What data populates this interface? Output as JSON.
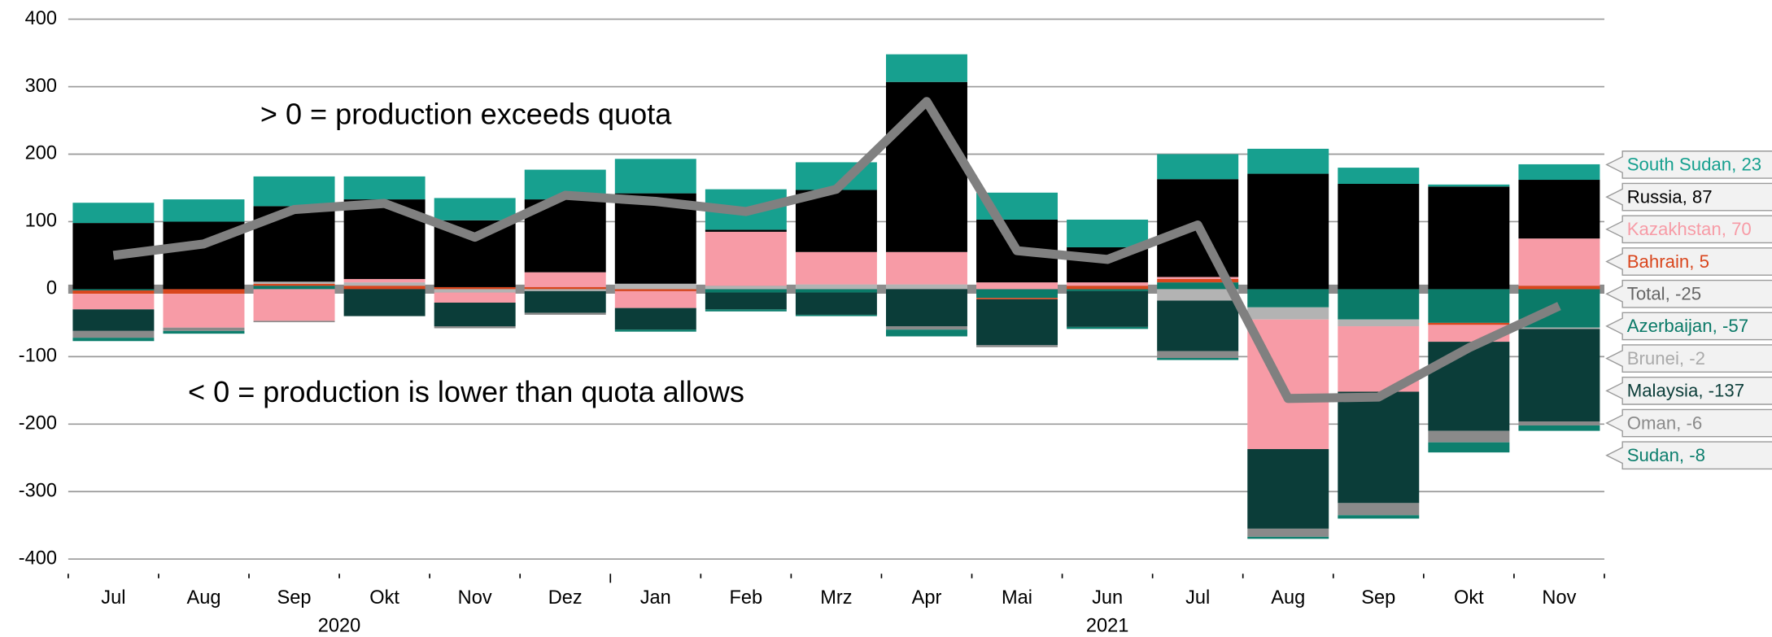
{
  "chart_data": {
    "type": "bar",
    "stacked": true,
    "annotations": [
      "> 0 = production exceeds quota",
      "< 0 = production is lower than quota allows"
    ],
    "categories": [
      "Jul",
      "Aug",
      "Sep",
      "Okt",
      "Nov",
      "Dez",
      "Jan",
      "Feb",
      "Mrz",
      "Apr",
      "Mai",
      "Jun",
      "Jul",
      "Aug",
      "Sep",
      "Okt",
      "Nov"
    ],
    "year_groups": [
      {
        "label": "2020",
        "start": 0,
        "end": 5
      },
      {
        "label": "2021",
        "start": 6,
        "end": 16
      }
    ],
    "ylim": [
      -400,
      400
    ],
    "yticks": [
      -400,
      -300,
      -200,
      -100,
      0,
      100,
      200,
      300,
      400
    ],
    "grid": true,
    "series": [
      {
        "name": "Azerbaijan",
        "legend_label": "Azerbaijan, -57",
        "color": "#0b7a68",
        "values": [
          -2,
          0,
          5,
          0,
          0,
          0,
          0,
          -5,
          -5,
          0,
          -13,
          -3,
          10,
          -27,
          -45,
          -50,
          -57
        ]
      },
      {
        "name": "Bahrain",
        "legend_label": "Bahrain, 5",
        "color": "#d9461d",
        "values": [
          -5,
          -7,
          3,
          5,
          3,
          3,
          -3,
          0,
          0,
          0,
          -2,
          5,
          5,
          0,
          0,
          -3,
          5
        ]
      },
      {
        "name": "Brunei",
        "legend_label": "Brunei, -2",
        "color": "#b3b3b3",
        "values": [
          0,
          0,
          3,
          5,
          -5,
          -3,
          8,
          5,
          7,
          7,
          0,
          0,
          -17,
          -18,
          -10,
          0,
          -2
        ]
      },
      {
        "name": "Kazakhstan",
        "legend_label": "Kazakhstan, 70",
        "color": "#f79ba6",
        "values": [
          -23,
          -50,
          -47,
          5,
          -15,
          22,
          -25,
          80,
          48,
          48,
          10,
          5,
          3,
          -192,
          -97,
          -25,
          70
        ]
      },
      {
        "name": "Russia",
        "legend_label": "Russia, 87",
        "color": "#000000",
        "values": [
          98,
          100,
          112,
          118,
          99,
          108,
          134,
          3,
          92,
          252,
          93,
          52,
          145,
          171,
          156,
          152,
          87
        ]
      },
      {
        "name": "Malaysia",
        "legend_label": "Malaysia, -137",
        "color": "#0b3d39",
        "values": [
          -32,
          0,
          0,
          -40,
          -35,
          -32,
          -32,
          -25,
          -33,
          -55,
          -68,
          -53,
          -75,
          -118,
          -165,
          -132,
          -137
        ]
      },
      {
        "name": "Oman",
        "legend_label": "Oman, -6",
        "color": "#8a8a8a",
        "values": [
          -10,
          -5,
          -2,
          0,
          -3,
          -3,
          0,
          0,
          0,
          -5,
          -3,
          0,
          -10,
          -12,
          -18,
          -17,
          -6
        ]
      },
      {
        "name": "Sudan",
        "legend_label": "Sudan, -8",
        "color": "#0e7f6e",
        "values": [
          -5,
          -4,
          0,
          0,
          0,
          0,
          -3,
          -3,
          -2,
          -10,
          0,
          -3,
          -3,
          -3,
          -5,
          -15,
          -8
        ]
      },
      {
        "name": "South Sudan",
        "legend_label": "South Sudan, 23",
        "color": "#17a08f",
        "values": [
          30,
          33,
          44,
          34,
          33,
          44,
          51,
          60,
          41,
          41,
          40,
          41,
          37,
          37,
          24,
          3,
          23
        ]
      }
    ],
    "total": {
      "name": "Total",
      "legend_label": "Total, -25",
      "color": "#808080",
      "values": [
        50,
        67,
        118,
        127,
        77,
        139,
        130,
        115,
        148,
        278,
        57,
        44,
        95,
        -162,
        -160,
        -87,
        -25
      ]
    }
  }
}
